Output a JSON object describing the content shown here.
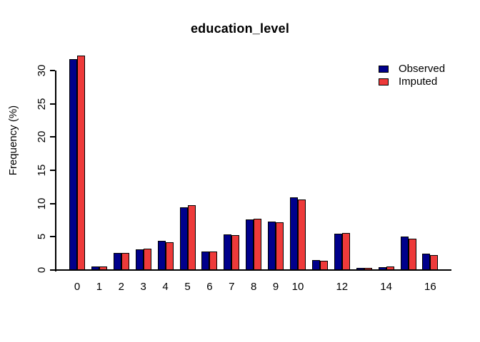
{
  "figure": {
    "title": "education_level",
    "ylabel": "Frequency (%)"
  },
  "legend": {
    "items": [
      {
        "label": "Observed",
        "color": "#00008B"
      },
      {
        "label": "Imputed",
        "color": "#EE3A3A"
      }
    ]
  },
  "chart_data": {
    "type": "bar",
    "title": "education_level",
    "xlabel": "",
    "ylabel": "Frequency (%)",
    "categories": [
      0,
      1,
      2,
      3,
      4,
      5,
      6,
      7,
      8,
      9,
      10,
      11,
      12,
      13,
      14,
      15,
      16
    ],
    "xtick_labels": [
      "0",
      "1",
      "2",
      "3",
      "4",
      "5",
      "6",
      "7",
      "8",
      "9",
      "10",
      "",
      "12",
      "",
      "14",
      "",
      "16"
    ],
    "yticks": [
      0,
      5,
      10,
      15,
      20,
      25,
      30
    ],
    "ylim": [
      0,
      32.5
    ],
    "grid": false,
    "legend_position": "top-right",
    "series": [
      {
        "name": "Observed",
        "color": "#00008B",
        "values": [
          31.7,
          0.5,
          2.6,
          3.1,
          4.4,
          9.4,
          2.8,
          5.4,
          7.6,
          7.3,
          10.9,
          1.5,
          5.5,
          0.3,
          0.4,
          5.0,
          2.5
        ]
      },
      {
        "name": "Imputed",
        "color": "#EE3A3A",
        "values": [
          32.3,
          0.5,
          2.6,
          3.2,
          4.2,
          9.7,
          2.8,
          5.2,
          7.7,
          7.2,
          10.6,
          1.4,
          5.6,
          0.3,
          0.5,
          4.7,
          2.2
        ]
      }
    ]
  }
}
